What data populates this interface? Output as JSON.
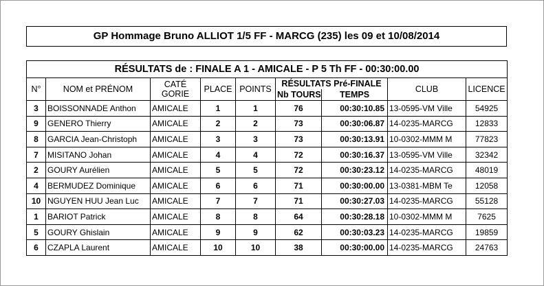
{
  "header": {
    "title": "GP Hommage Bruno ALLIOT 1/5 FF - MARCG (235) les 09 et 10/08/2014"
  },
  "table": {
    "subtitle": "RÉSULTATS de :  FINALE A 1  -  AMICALE  -  P 5 Th FF  -  00:30:00.00",
    "columns": [
      "N°",
      "NOM et PRÉNOM",
      [
        "CATÉ",
        "GORIE"
      ],
      "PLACE",
      "POINTS",
      "CLUB",
      "LICENCE"
    ],
    "group": {
      "label": "RÉSULTATS Pré-FINALE",
      "columns": [
        "Nb TOURS",
        "TEMPS"
      ]
    },
    "rows": [
      [
        3,
        "BOISSONNADE Anthon",
        "AMICALE",
        1,
        1,
        76,
        "00:30:10.85",
        "13-0595-VM Ville",
        54925
      ],
      [
        9,
        "GENERO Thierry",
        "AMICALE",
        2,
        2,
        73,
        "00:30:06.87",
        "14-0235-MARCG",
        12833
      ],
      [
        8,
        "GARCIA Jean-Christoph",
        "AMICALE",
        3,
        3,
        73,
        "00:30:13.91",
        "10-0302-MMM M",
        77823
      ],
      [
        7,
        "MISITANO Johan",
        "AMICALE",
        4,
        4,
        72,
        "00:30:16.37",
        "13-0595-VM Ville",
        32342
      ],
      [
        2,
        "GOURY Aurélien",
        "AMICALE",
        5,
        5,
        72,
        "00:30:23.12",
        "14-0235-MARCG",
        48019
      ],
      [
        4,
        "BERMUDEZ Dominique",
        "AMICALE",
        6,
        6,
        71,
        "00:30:00.00",
        "13-0381-MBM Te",
        12058
      ],
      [
        10,
        "NGUYEN HUU Jean Luc",
        "AMICALE",
        7,
        7,
        71,
        "00:30:27.03",
        "14-0235-MARCG",
        55128
      ],
      [
        1,
        "BARIOT Patrick",
        "AMICALE",
        8,
        8,
        64,
        "00:30:28.18",
        "10-0302-MMM M",
        7625
      ],
      [
        5,
        "GOURY Ghislain",
        "AMICALE",
        9,
        9,
        62,
        "00:30:03.23",
        "14-0235-MARCG",
        19859
      ],
      [
        6,
        "CZAPLA Laurent",
        "AMICALE",
        10,
        10,
        38,
        "00:30:00.00",
        "14-0235-MARCG",
        24763
      ]
    ]
  }
}
